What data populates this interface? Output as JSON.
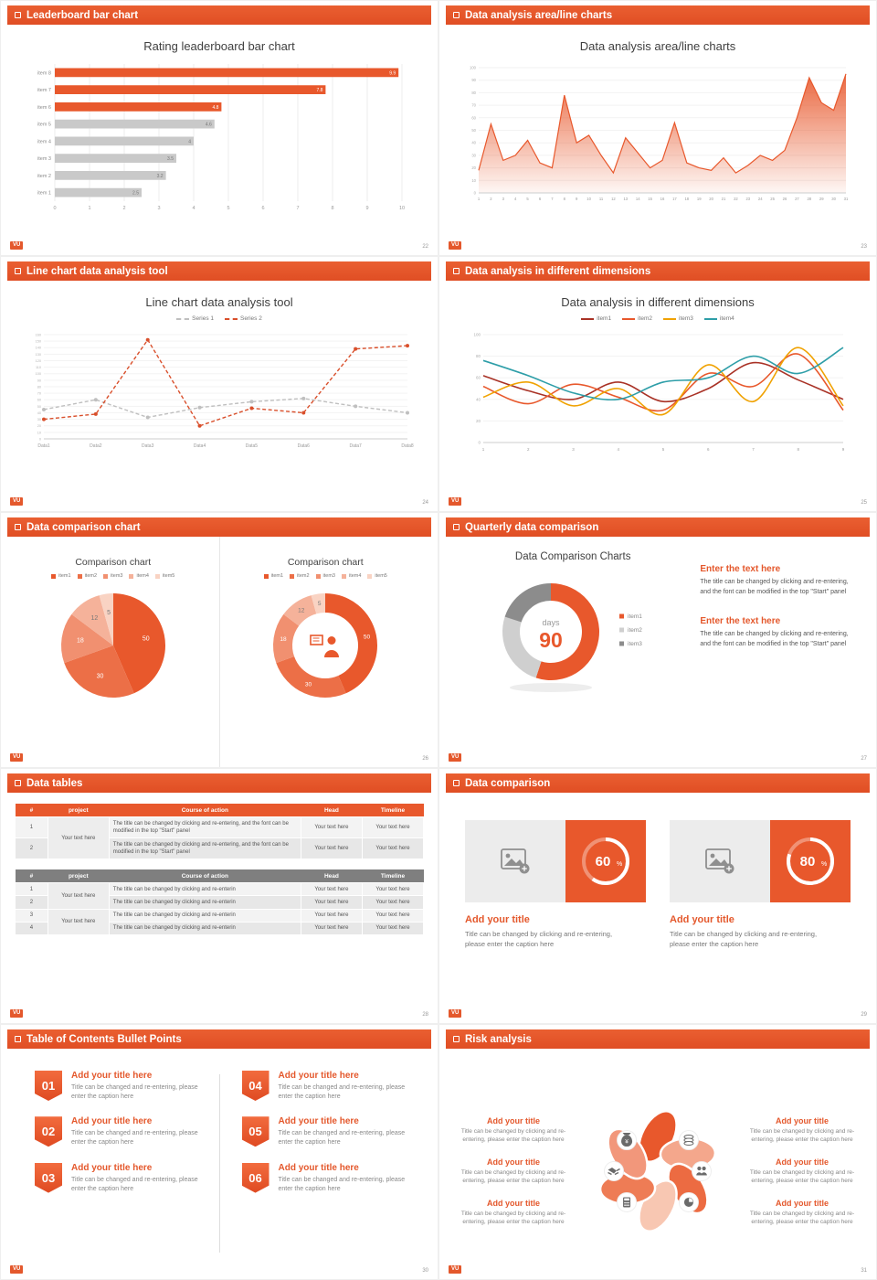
{
  "accent": "#E4582C",
  "slides": [
    {
      "header": "Leaderboard bar chart",
      "logo": "VU",
      "page": "22",
      "title": "Rating leaderboard bar chart",
      "chart": {
        "type": "bar-horizontal",
        "categories": [
          "item 8",
          "item 7",
          "item 6",
          "item 5",
          "item 4",
          "item 3",
          "item 2",
          "item 1"
        ],
        "values": [
          9.9,
          7.8,
          4.8,
          4.6,
          4,
          3.5,
          3.2,
          2.5
        ],
        "colors": [
          "#E8582C",
          "#E8582C",
          "#E8582C",
          "#C9C9C9",
          "#C9C9C9",
          "#C9C9C9",
          "#C9C9C9",
          "#C9C9C9"
        ],
        "xlim": [
          0,
          10
        ],
        "x_ticks": [
          0,
          1,
          2,
          3,
          4,
          5,
          6,
          7,
          8,
          9,
          10
        ]
      }
    },
    {
      "header": "Data analysis area/line charts",
      "logo": "VU",
      "page": "23",
      "title": "Data analysis area/line charts",
      "chart": {
        "type": "area",
        "color": "#E8582C",
        "x": [
          1,
          2,
          3,
          4,
          5,
          6,
          7,
          8,
          9,
          10,
          11,
          12,
          13,
          14,
          15,
          16,
          17,
          18,
          19,
          20,
          21,
          22,
          23,
          24,
          25,
          26,
          27,
          28,
          29,
          30,
          31
        ],
        "values": [
          18,
          55,
          26,
          30,
          42,
          24,
          20,
          78,
          40,
          46,
          30,
          16,
          44,
          32,
          20,
          26,
          56,
          24,
          20,
          18,
          28,
          16,
          22,
          30,
          26,
          34,
          60,
          92,
          72,
          66,
          95
        ],
        "ylim": [
          0,
          100
        ],
        "y_step": 10
      }
    },
    {
      "header": "Line chart data analysis tool",
      "logo": "VU",
      "page": "24",
      "title": "Line chart data analysis tool",
      "chart": {
        "type": "line",
        "categories": [
          "Data1",
          "Data2",
          "Data3",
          "Data4",
          "Data5",
          "Data6",
          "Data7",
          "Data8"
        ],
        "ylim": [
          0,
          160
        ],
        "y_step": 10,
        "series": [
          {
            "name": "Series 1",
            "color": "#BFBFBF",
            "values": [
              45,
              60,
              33,
              48,
              57,
              62,
              50,
              40
            ]
          },
          {
            "name": "Series 2",
            "color": "#D94F2B",
            "values": [
              30,
              38,
              152,
              20,
              47,
              40,
              138,
              143
            ]
          }
        ]
      }
    },
    {
      "header": "Data analysis in different dimensions",
      "logo": "VU",
      "page": "25",
      "title": "Data analysis in different dimensions",
      "chart": {
        "type": "multi-line",
        "x": [
          1,
          2,
          3,
          4,
          5,
          6,
          7,
          8,
          9
        ],
        "ylim": [
          0,
          100
        ],
        "y_step": 20,
        "series": [
          {
            "name": "item1",
            "color": "#A93226",
            "values": [
              62,
              48,
              40,
              56,
              38,
              50,
              74,
              58,
              40
            ]
          },
          {
            "name": "item2",
            "color": "#E8582C",
            "values": [
              52,
              36,
              54,
              42,
              30,
              64,
              52,
              82,
              30
            ]
          },
          {
            "name": "item3",
            "color": "#F0A202",
            "values": [
              42,
              56,
              34,
              50,
              26,
              72,
              38,
              88,
              34
            ]
          },
          {
            "name": "item4",
            "color": "#2E9EA8",
            "values": [
              76,
              62,
              46,
              40,
              56,
              60,
              80,
              64,
              88
            ]
          }
        ]
      }
    },
    {
      "header": "Data comparison chart",
      "logo": "VU",
      "page": "26",
      "panels": [
        {
          "title": "Comparison chart",
          "legend": [
            "item1",
            "item2",
            "item3",
            "item4",
            "item5"
          ],
          "chart": {
            "type": "pie",
            "values": [
              50,
              30,
              18,
              12,
              5
            ],
            "colors": [
              "#E8582C",
              "#EC6F47",
              "#F19070",
              "#F5B29A",
              "#F9D3C3"
            ]
          }
        },
        {
          "title": "Comparison chart",
          "legend": [
            "item1",
            "item2",
            "item3",
            "item4",
            "item5"
          ],
          "chart": {
            "type": "donut",
            "values": [
              50,
              30,
              18,
              12,
              5
            ],
            "colors": [
              "#E8582C",
              "#EC6F47",
              "#F19070",
              "#F5B29A",
              "#F9D3C3"
            ],
            "center_icon": "presenter-icon"
          }
        }
      ]
    },
    {
      "header": "Quarterly data comparison",
      "logo": "VU",
      "page": "27",
      "title": "Data Comparison Charts",
      "donut": {
        "values": [
          55,
          25,
          20
        ],
        "colors": [
          "#E8582C",
          "#CFCFCF",
          "#8C8C8C"
        ],
        "legend": [
          "item1",
          "item2",
          "item3"
        ],
        "center_label": "days",
        "center_value": "90"
      },
      "blocks": [
        {
          "title": "Enter the text here",
          "body": "The title can be changed by clicking and re-entering, and the font can be modified in the top \"Start\" panel"
        },
        {
          "title": "Enter the text here",
          "body": "The title can be changed by clicking and re-entering, and the font can be modified in the top \"Start\" panel"
        }
      ]
    },
    {
      "header": "Data tables",
      "logo": "VU",
      "page": "28",
      "table1": {
        "columns": [
          "#",
          "project",
          "Course of action",
          "Head",
          "Timeline"
        ],
        "group_label": "Your text here",
        "rows": [
          {
            "num": "1",
            "action": "The title can be changed by clicking and re-entering, and the font can be modified in the top \"Start\" panel",
            "head": "Your text here",
            "timeline": "Your text here"
          },
          {
            "num": "2",
            "action": "The title can be changed by clicking and re-entering, and the font can be modified in the top \"Start\" panel",
            "head": "Your text here",
            "timeline": "Your text here"
          }
        ]
      },
      "table2": {
        "columns": [
          "#",
          "project",
          "Course of action",
          "Head",
          "Timeline"
        ],
        "group_labels": [
          "Your text here",
          "Your text here"
        ],
        "rows": [
          {
            "num": "1",
            "action": "The title can be changed by clicking and re-enterin",
            "head": "Your text here",
            "timeline": "Your text here"
          },
          {
            "num": "2",
            "action": "The title can be changed by clicking and re-enterin",
            "head": "Your text here",
            "timeline": "Your text here"
          },
          {
            "num": "3",
            "action": "The title can be changed by clicking and re-enterin",
            "head": "Your text here",
            "timeline": "Your text here"
          },
          {
            "num": "4",
            "action": "The title can be changed by clicking and re-enterin",
            "head": "Your text here",
            "timeline": "Your text here"
          }
        ]
      }
    },
    {
      "header": "Data comparison",
      "logo": "VU",
      "page": "29",
      "cards": [
        {
          "percent": 60,
          "title": "Add your title",
          "caption": "Title can be changed by clicking and re-entering, please enter the caption here"
        },
        {
          "percent": 80,
          "title": "Add your title",
          "caption": "Title can be changed by clicking and re-entering, please enter the caption here"
        }
      ]
    },
    {
      "header": "Table of Contents Bullet Points",
      "logo": "VU",
      "page": "30",
      "items": [
        {
          "num": "01",
          "title": "Add your title here",
          "caption": "Title can be changed and re-entering, please enter the caption here"
        },
        {
          "num": "02",
          "title": "Add your title here",
          "caption": "Title can be changed and re-entering, please enter the caption here"
        },
        {
          "num": "03",
          "title": "Add your title here",
          "caption": "Title can be changed and re-entering, please enter the caption here"
        },
        {
          "num": "04",
          "title": "Add your title here",
          "caption": "Title can be changed and re-entering, please enter the caption here"
        },
        {
          "num": "05",
          "title": "Add your title here",
          "caption": "Title can be changed and re-entering, please enter the caption here"
        },
        {
          "num": "06",
          "title": "Add your title here",
          "caption": "Title can be changed and re-entering, please enter the caption here"
        }
      ]
    },
    {
      "header": "Risk analysis",
      "logo": "VU",
      "page": "31",
      "items": [
        {
          "title": "Add your title",
          "caption": "Title can be changed by clicking and re-entering, please enter the caption here"
        },
        {
          "title": "Add your title",
          "caption": "Title can be changed by clicking and re-entering, please enter the caption here"
        },
        {
          "title": "Add your title",
          "caption": "Title can be changed by clicking and re-entering, please enter the caption here"
        },
        {
          "title": "Add your title",
          "caption": "Title can be changed by clicking and re-entering, please enter the caption here"
        },
        {
          "title": "Add your title",
          "caption": "Title can be changed by clicking and re-entering, please enter the caption here"
        },
        {
          "title": "Add your title",
          "caption": "Title can be changed by clicking and re-entering, please enter the caption here"
        }
      ],
      "wheel_icons": [
        "money-bag-icon",
        "coins-icon",
        "handshake-icon",
        "people-icon",
        "calculator-icon",
        "pie-chart-icon"
      ]
    }
  ]
}
